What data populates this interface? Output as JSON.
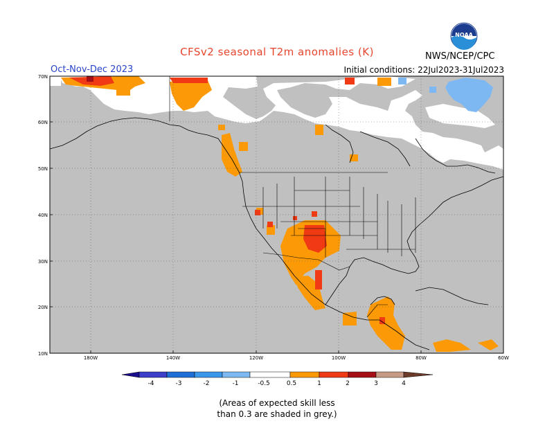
{
  "title": "CFSv2 seasonal T2m anomalies (K)",
  "period": "Oct-Nov-Dec 2023",
  "initial_conditions": "Initial conditions: 22Jul2023-31Jul2023",
  "org": "NWS/NCEP/CPC",
  "logo_text": "NOAA",
  "lat_labels": [
    "70N",
    "60N",
    "50N",
    "40N",
    "30N",
    "20N",
    "10N"
  ],
  "lon_labels": [
    "180W",
    "140W",
    "120W",
    "100W",
    "80W",
    "60W"
  ],
  "colorbar": {
    "labels": [
      "-4",
      "-3",
      "-2",
      "-1",
      "-0.5",
      "0.5",
      "1",
      "2",
      "3",
      "4"
    ],
    "colors": [
      "#1a0e8c",
      "#3b3fc9",
      "#1f6fd6",
      "#3a97ea",
      "#7eb8f2",
      "#ffffff",
      "#fb9a06",
      "#ef3a14",
      "#a50f15",
      "#c79a85",
      "#6d3b2a"
    ]
  },
  "colors": {
    "skill_grey": "#c0c0c0",
    "no_anomaly": "#ffffff",
    "warm_light": "#fb9a06",
    "warm_mid": "#ef3a14",
    "warm_strong": "#a50f15",
    "cool_light": "#7eb8f2"
  },
  "caption": {
    "line1": "(Areas of expected skill less",
    "line2": "than 0.3 are shaded in grey.)"
  }
}
